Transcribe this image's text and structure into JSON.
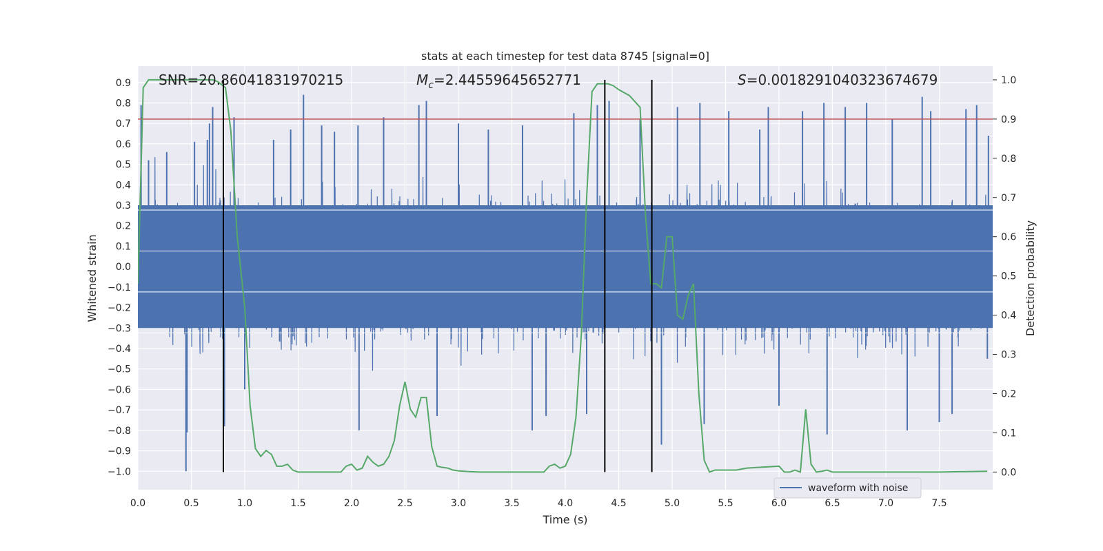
{
  "chart_data": {
    "type": "line",
    "title": "stats at each timestep for test data 8745 [signal=0]",
    "xlabel": "Time (s)",
    "ylabel": "Whitened strain",
    "y2label": "Detection probability",
    "xlim": [
      0.0,
      8.0
    ],
    "ylim": [
      -1.09,
      0.98
    ],
    "y2lim": [
      -0.045,
      1.035
    ],
    "x_ticks": [
      "0.0",
      "0.5",
      "1.0",
      "1.5",
      "2.0",
      "2.5",
      "3.0",
      "3.5",
      "4.0",
      "4.5",
      "5.0",
      "5.5",
      "6.0",
      "6.5",
      "7.0",
      "7.5"
    ],
    "y_ticks": [
      "0.9",
      "0.8",
      "0.7",
      "0.6",
      "0.5",
      "0.4",
      "0.3",
      "0.2",
      "0.1",
      "0.0",
      "−0.1",
      "−0.2",
      "−0.3",
      "−0.4",
      "−0.5",
      "−0.6",
      "−0.7",
      "−0.8",
      "−0.9",
      "−1.0"
    ],
    "y2_ticks": [
      "1.0",
      "0.9",
      "0.8",
      "0.7",
      "0.6",
      "0.5",
      "0.4",
      "0.3",
      "0.2",
      "0.1",
      "0.0"
    ],
    "grid": true,
    "legend_position": "bottom-right",
    "annotations": {
      "snr": "SNR=20.86041831970215",
      "mc_prefix": "M",
      "mc_sub": "c",
      "mc_value": "=2.44559645652771",
      "s_prefix": "S",
      "s_value": "=0.0018291040323674679"
    },
    "threshold": 0.9,
    "vertical_lines": [
      0.8,
      4.37,
      4.81
    ],
    "series": [
      {
        "name": "waveform with noise",
        "axis": "left",
        "color": "#4c72b0",
        "typical_abs": 0.3,
        "spikes": [
          [
            0.03,
            0.79
          ],
          [
            0.1,
            0.52
          ],
          [
            0.27,
            0.56
          ],
          [
            0.45,
            -1.0
          ],
          [
            0.46,
            -0.81
          ],
          [
            0.53,
            0.61
          ],
          [
            0.65,
            0.62
          ],
          [
            0.67,
            0.7
          ],
          [
            0.7,
            0.78
          ],
          [
            0.81,
            -0.78
          ],
          [
            0.9,
            0.73
          ],
          [
            1.0,
            -0.6
          ],
          [
            1.27,
            0.62
          ],
          [
            1.43,
            0.67
          ],
          [
            1.55,
            0.84
          ],
          [
            1.72,
            0.69
          ],
          [
            1.84,
            0.66
          ],
          [
            2.06,
            0.69
          ],
          [
            2.07,
            -0.8
          ],
          [
            2.3,
            0.73
          ],
          [
            2.63,
            0.79
          ],
          [
            2.7,
            0.81
          ],
          [
            2.8,
            -0.73
          ],
          [
            3.0,
            0.7
          ],
          [
            3.28,
            0.67
          ],
          [
            3.6,
            0.69
          ],
          [
            3.69,
            -0.8
          ],
          [
            3.82,
            -0.73
          ],
          [
            4.08,
            0.75
          ],
          [
            4.2,
            -0.72
          ],
          [
            4.3,
            0.79
          ],
          [
            4.41,
            0.81
          ],
          [
            4.7,
            0.72
          ],
          [
            4.9,
            -0.87
          ],
          [
            5.05,
            0.78
          ],
          [
            5.26,
            0.8
          ],
          [
            5.3,
            -0.77
          ],
          [
            5.53,
            0.76
          ],
          [
            5.82,
            0.67
          ],
          [
            5.9,
            0.78
          ],
          [
            6.0,
            -0.68
          ],
          [
            6.22,
            0.76
          ],
          [
            6.42,
            0.8
          ],
          [
            6.45,
            -0.82
          ],
          [
            6.62,
            0.78
          ],
          [
            6.82,
            0.8
          ],
          [
            7.06,
            0.72
          ],
          [
            7.2,
            -0.8
          ],
          [
            7.34,
            0.83
          ],
          [
            7.42,
            0.76
          ],
          [
            7.5,
            -0.76
          ],
          [
            7.62,
            -0.72
          ],
          [
            7.75,
            0.77
          ],
          [
            7.85,
            0.79
          ],
          [
            7.96,
            0.64
          ],
          [
            7.95,
            -0.45
          ]
        ]
      },
      {
        "name": "",
        "axis": "right",
        "color": "#55a868",
        "x": [
          0.0,
          0.05,
          0.1,
          0.2,
          0.3,
          0.4,
          0.5,
          0.6,
          0.7,
          0.75,
          0.82,
          0.87,
          0.93,
          1.0,
          1.05,
          1.1,
          1.15,
          1.2,
          1.25,
          1.3,
          1.35,
          1.4,
          1.45,
          1.5,
          1.55,
          1.6,
          1.7,
          1.8,
          1.9,
          1.95,
          2.0,
          2.05,
          2.1,
          2.15,
          2.2,
          2.25,
          2.3,
          2.35,
          2.4,
          2.45,
          2.5,
          2.55,
          2.6,
          2.65,
          2.7,
          2.75,
          2.8,
          2.85,
          2.9,
          2.95,
          3.0,
          3.1,
          3.2,
          3.4,
          3.6,
          3.8,
          3.85,
          3.9,
          3.95,
          4.0,
          4.05,
          4.1,
          4.15,
          4.2,
          4.25,
          4.3,
          4.35,
          4.4,
          4.45,
          4.5,
          4.6,
          4.7,
          4.75,
          4.8,
          4.85,
          4.9,
          4.95,
          5.0,
          5.05,
          5.1,
          5.15,
          5.2,
          5.25,
          5.3,
          5.35,
          5.4,
          5.45,
          5.5,
          5.55,
          5.6,
          5.7,
          6.0,
          6.05,
          6.1,
          6.15,
          6.2,
          6.25,
          6.3,
          6.35,
          6.4,
          6.45,
          6.5,
          6.55,
          6.6,
          6.7,
          7.0,
          7.5,
          7.95
        ],
        "values": [
          0.48,
          0.98,
          1.0,
          1.0,
          1.0,
          1.0,
          1.0,
          1.0,
          1.0,
          0.995,
          0.98,
          0.87,
          0.6,
          0.42,
          0.17,
          0.06,
          0.04,
          0.055,
          0.045,
          0.015,
          0.015,
          0.02,
          0.005,
          0.0,
          0.0,
          0.0,
          0.0,
          0.0,
          0.0,
          0.015,
          0.02,
          0.005,
          0.01,
          0.04,
          0.025,
          0.015,
          0.02,
          0.04,
          0.08,
          0.17,
          0.23,
          0.16,
          0.14,
          0.19,
          0.19,
          0.065,
          0.015,
          0.012,
          0.01,
          0.005,
          0.003,
          0.001,
          0.0,
          0.0,
          0.0,
          0.0,
          0.015,
          0.02,
          0.01,
          0.015,
          0.045,
          0.14,
          0.35,
          0.7,
          0.97,
          0.99,
          0.99,
          0.99,
          0.985,
          0.975,
          0.96,
          0.93,
          0.66,
          0.48,
          0.48,
          0.47,
          0.6,
          0.6,
          0.4,
          0.39,
          0.45,
          0.48,
          0.2,
          0.03,
          0.0,
          0.005,
          0.005,
          0.005,
          0.005,
          0.005,
          0.01,
          0.015,
          0.0,
          0.0,
          0.005,
          0.0,
          0.16,
          0.02,
          0.0,
          0.002,
          0.005,
          0.0,
          0.0,
          0.0,
          0.0,
          0.0,
          0.0,
          0.002
        ]
      },
      {
        "name": "",
        "axis": "right",
        "color": "#c44e52",
        "values": [
          0.9,
          0.9
        ]
      }
    ]
  }
}
